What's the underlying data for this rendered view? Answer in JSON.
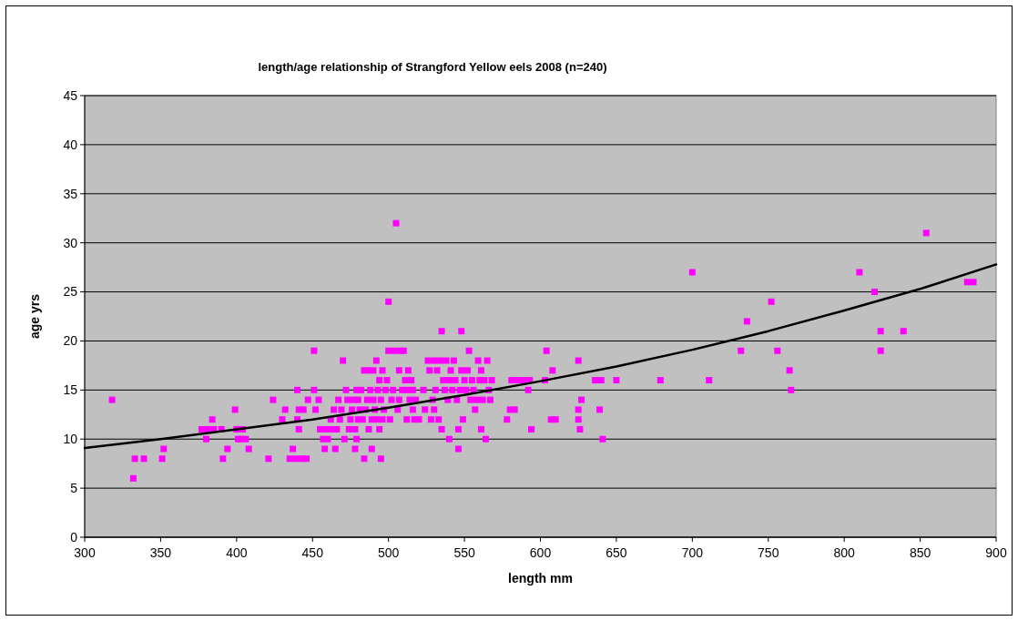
{
  "chart_data": {
    "type": "scatter",
    "title": "length/age relationship of Strangford Yellow eels 2008 (n=240)",
    "xlabel": "length mm",
    "ylabel": "age yrs",
    "xlim": [
      300,
      900
    ],
    "xticks": [
      300,
      350,
      400,
      450,
      500,
      550,
      600,
      650,
      700,
      750,
      800,
      850,
      900
    ],
    "ylim": [
      0,
      45
    ],
    "yticks": [
      0,
      5,
      10,
      15,
      20,
      25,
      30,
      35,
      40,
      45
    ],
    "grid": "y",
    "series": [
      {
        "color": "#ff00ff",
        "marker": "square",
        "x": [
          318,
          332,
          333,
          339,
          351,
          352,
          377,
          380,
          381,
          384,
          385,
          390,
          391,
          394,
          399,
          400,
          401,
          403,
          404,
          406,
          408,
          421,
          424,
          430,
          432,
          435,
          437,
          439,
          440,
          440,
          441,
          441,
          443,
          444,
          446,
          447,
          451,
          451,
          452,
          454,
          455,
          457,
          458,
          459,
          460,
          462,
          463,
          464,
          465,
          466,
          467,
          468,
          469,
          470,
          471,
          472,
          473,
          474,
          475,
          476,
          477,
          478,
          478,
          479,
          479,
          480,
          480,
          481,
          482,
          483,
          484,
          484,
          485,
          486,
          487,
          487,
          488,
          489,
          489,
          490,
          490,
          491,
          492,
          492,
          493,
          494,
          494,
          495,
          495,
          496,
          496,
          497,
          498,
          499,
          500,
          500,
          501,
          502,
          503,
          504,
          505,
          506,
          507,
          507,
          508,
          509,
          510,
          511,
          512,
          512,
          513,
          514,
          515,
          516,
          516,
          517,
          518,
          520,
          523,
          524,
          526,
          527,
          528,
          529,
          530,
          530,
          531,
          532,
          533,
          534,
          535,
          535,
          536,
          537,
          538,
          539,
          540,
          540,
          541,
          542,
          543,
          544,
          545,
          546,
          546,
          547,
          548,
          548,
          549,
          550,
          551,
          552,
          553,
          554,
          555,
          556,
          557,
          558,
          559,
          560,
          561,
          561,
          562,
          563,
          564,
          565,
          566,
          567,
          568,
          578,
          580,
          581,
          583,
          585,
          587,
          590,
          592,
          594,
          593,
          603,
          604,
          607,
          608,
          610,
          625,
          625,
          625,
          626,
          627,
          636,
          639,
          640,
          641,
          650,
          679,
          700,
          711,
          732,
          736,
          756,
          752,
          765,
          764,
          810,
          820,
          824,
          824,
          839,
          854,
          881,
          885
        ],
        "values": [
          14,
          6,
          8,
          8,
          8,
          9,
          11,
          10,
          11,
          12,
          11,
          11,
          8,
          9,
          13,
          11,
          10,
          10,
          11,
          10,
          9,
          8,
          14,
          12,
          13,
          8,
          9,
          8,
          15,
          12,
          13,
          11,
          8,
          13,
          8,
          14,
          19,
          15,
          13,
          14,
          11,
          10,
          9,
          11,
          10,
          12,
          11,
          13,
          9,
          11,
          14,
          12,
          13,
          18,
          10,
          15,
          14,
          11,
          12,
          13,
          14,
          9,
          11,
          15,
          10,
          12,
          14,
          13,
          15,
          12,
          17,
          8,
          13,
          14,
          11,
          17,
          15,
          9,
          12,
          14,
          17,
          13,
          12,
          18,
          15,
          16,
          11,
          8,
          14,
          12,
          17,
          13,
          15,
          16,
          24,
          19,
          12,
          14,
          15,
          19,
          32,
          13,
          17,
          14,
          19,
          15,
          19,
          16,
          12,
          15,
          17,
          14,
          16,
          13,
          15,
          12,
          14,
          12,
          15,
          13,
          18,
          17,
          12,
          14,
          18,
          13,
          15,
          17,
          12,
          18,
          11,
          21,
          16,
          15,
          18,
          14,
          10,
          16,
          17,
          15,
          18,
          16,
          14,
          9,
          11,
          15,
          17,
          21,
          12,
          16,
          15,
          17,
          19,
          14,
          16,
          15,
          13,
          14,
          18,
          16,
          11,
          17,
          14,
          16,
          10,
          18,
          15,
          14,
          16,
          12,
          13,
          16,
          13,
          16,
          16,
          16,
          15,
          11,
          16,
          16,
          19,
          12,
          17,
          12,
          18,
          13,
          12,
          11,
          14,
          16,
          13,
          16,
          10,
          16,
          16,
          27,
          16,
          19,
          22,
          19,
          24,
          15,
          17,
          27,
          25,
          21,
          19,
          21,
          31,
          26,
          26
        ]
      },
      {
        "type": "line",
        "color": "#000000",
        "line_style": "solid",
        "x": [
          300,
          350,
          400,
          450,
          500,
          550,
          600,
          650,
          700,
          750,
          800,
          850,
          900
        ],
        "values": [
          9.1,
          10.0,
          11.0,
          12.0,
          13.2,
          14.5,
          15.9,
          17.4,
          19.1,
          21.0,
          23.1,
          25.3,
          27.8
        ]
      }
    ]
  }
}
